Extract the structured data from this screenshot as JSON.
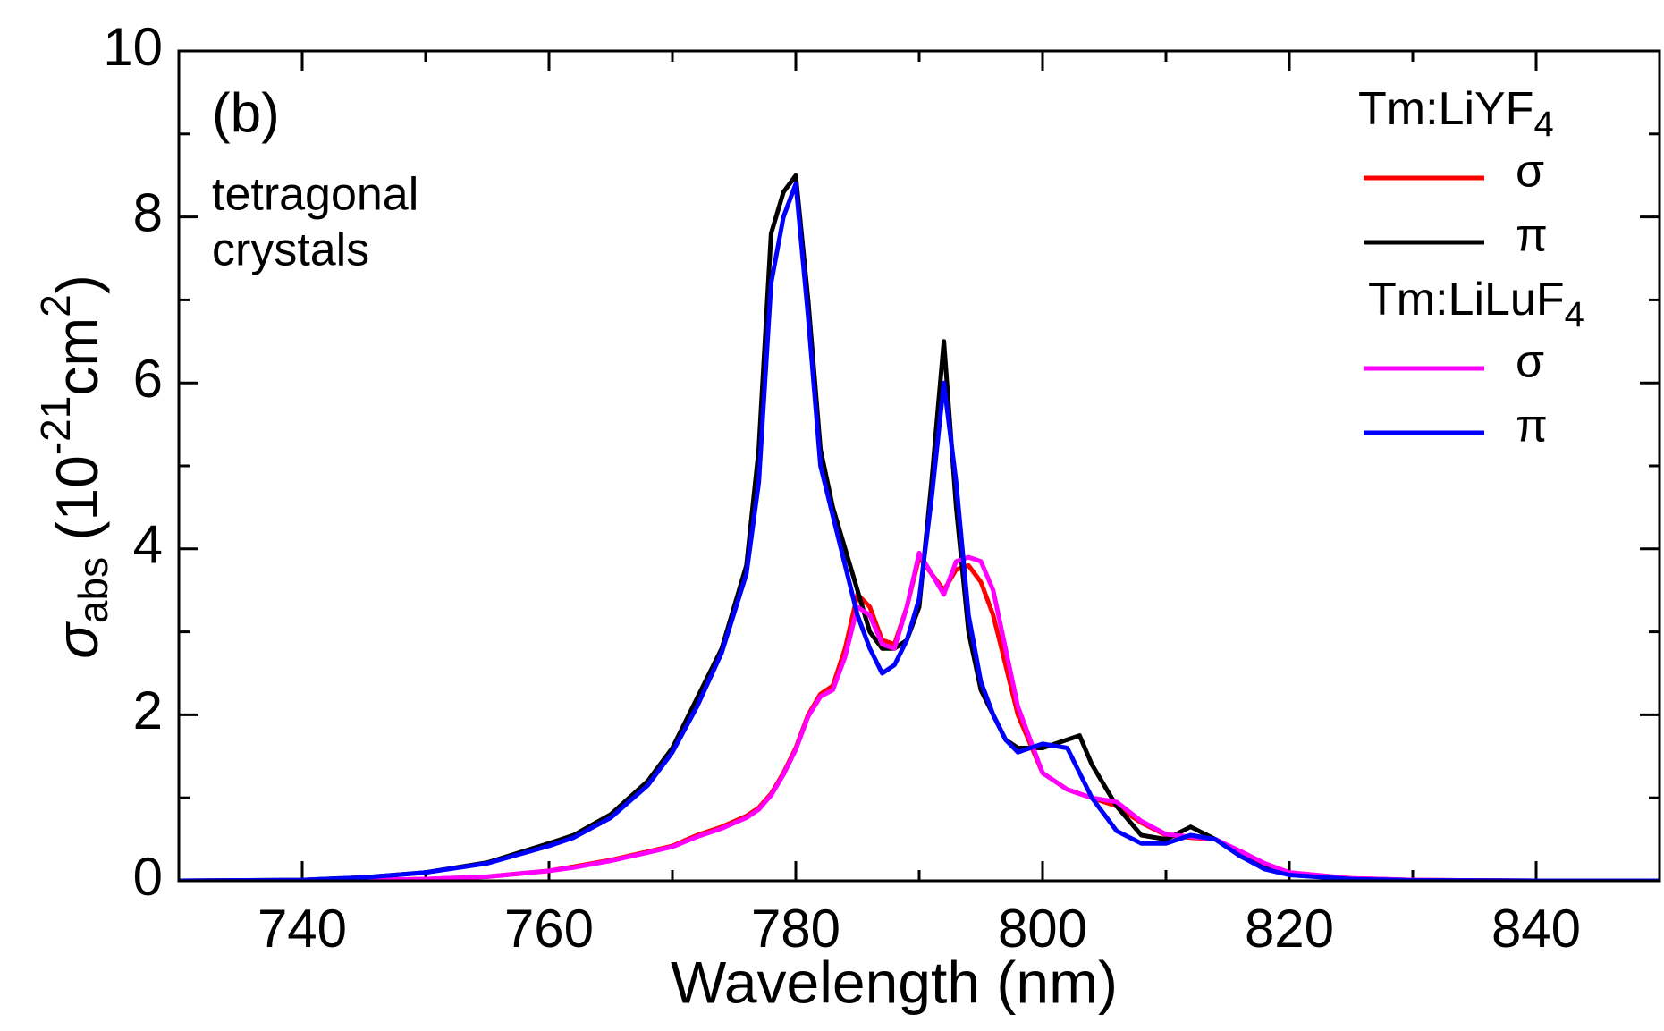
{
  "chart_data": {
    "type": "line",
    "xlabel": "Wavelength (nm)",
    "ylabel_parts": [
      {
        "text": "σ",
        "style": "italic"
      },
      {
        "text": "abs",
        "style": "sub"
      },
      {
        "text": " (10",
        "style": "normal"
      },
      {
        "text": "-21",
        "style": "sup"
      },
      {
        "text": "cm",
        "style": "normal"
      },
      {
        "text": "2",
        "style": "sup"
      },
      {
        "text": ")",
        "style": "normal"
      }
    ],
    "annotations": [
      "(b)",
      "tetragonal",
      "crystals"
    ],
    "xlim": [
      730,
      850
    ],
    "ylim": [
      0,
      10
    ],
    "xticks": [
      740,
      760,
      780,
      800,
      820,
      840
    ],
    "yticks": [
      0,
      2,
      4,
      6,
      8,
      10
    ],
    "xminor": [
      750,
      770,
      790,
      810,
      830
    ],
    "yminor": [
      1,
      3,
      5,
      7,
      9
    ],
    "legend_groups": [
      {
        "text": "Tm:LiYF",
        "sub": "4"
      },
      {
        "text": "Tm:LiLuF",
        "sub": "4"
      }
    ],
    "x": [
      730,
      740,
      745,
      750,
      755,
      760,
      762,
      765,
      768,
      770,
      772,
      774,
      776,
      777,
      778,
      779,
      780,
      781,
      782,
      783,
      784,
      785,
      786,
      787,
      788,
      789,
      790,
      791,
      792,
      793,
      794,
      795,
      796,
      797,
      798,
      800,
      802,
      803,
      804,
      806,
      808,
      810,
      812,
      814,
      816,
      818,
      820,
      825,
      830,
      840,
      850
    ],
    "series": [
      {
        "name": "σ",
        "group": 0,
        "color": "#ff0000",
        "values": [
          0,
          0,
          0.01,
          0.02,
          0.05,
          0.12,
          0.17,
          0.25,
          0.35,
          0.42,
          0.55,
          0.65,
          0.78,
          0.88,
          1.05,
          1.3,
          1.6,
          2.0,
          2.25,
          2.35,
          2.8,
          3.45,
          3.3,
          2.9,
          2.85,
          3.3,
          3.9,
          3.7,
          3.5,
          3.75,
          3.8,
          3.6,
          3.2,
          2.6,
          2.0,
          1.3,
          1.1,
          1.05,
          1.0,
          0.9,
          0.7,
          0.55,
          0.52,
          0.5,
          0.35,
          0.2,
          0.1,
          0.03,
          0.01,
          0,
          0
        ]
      },
      {
        "name": "π",
        "group": 0,
        "color": "#000000",
        "values": [
          0,
          0.01,
          0.04,
          0.1,
          0.22,
          0.45,
          0.55,
          0.8,
          1.2,
          1.6,
          2.2,
          2.8,
          3.8,
          5.2,
          7.8,
          8.3,
          8.5,
          7.0,
          5.2,
          4.5,
          4.0,
          3.5,
          3.0,
          2.8,
          2.8,
          2.9,
          3.3,
          4.8,
          6.5,
          4.5,
          3.0,
          2.3,
          2.0,
          1.7,
          1.6,
          1.6,
          1.7,
          1.75,
          1.4,
          0.9,
          0.55,
          0.5,
          0.65,
          0.5,
          0.3,
          0.15,
          0.08,
          0.02,
          0.005,
          0,
          0
        ]
      },
      {
        "name": "σ",
        "group": 1,
        "color": "#ff00ff",
        "values": [
          0,
          0,
          0.01,
          0.02,
          0.05,
          0.12,
          0.16,
          0.24,
          0.34,
          0.41,
          0.53,
          0.63,
          0.76,
          0.86,
          1.03,
          1.28,
          1.58,
          1.98,
          2.22,
          2.3,
          2.7,
          3.3,
          3.2,
          2.85,
          2.8,
          3.3,
          3.95,
          3.7,
          3.45,
          3.85,
          3.9,
          3.85,
          3.5,
          2.8,
          2.1,
          1.3,
          1.1,
          1.05,
          1.0,
          0.95,
          0.72,
          0.56,
          0.53,
          0.5,
          0.36,
          0.21,
          0.1,
          0.03,
          0.01,
          0,
          0
        ]
      },
      {
        "name": "π",
        "group": 1,
        "color": "#0000ff",
        "values": [
          0,
          0.01,
          0.04,
          0.1,
          0.21,
          0.42,
          0.52,
          0.76,
          1.15,
          1.55,
          2.1,
          2.75,
          3.7,
          4.8,
          7.2,
          8.0,
          8.4,
          6.8,
          5.0,
          4.4,
          3.8,
          3.2,
          2.8,
          2.5,
          2.6,
          2.9,
          3.4,
          4.6,
          6.0,
          4.8,
          3.2,
          2.4,
          2.0,
          1.7,
          1.55,
          1.65,
          1.6,
          1.3,
          1.0,
          0.6,
          0.45,
          0.45,
          0.55,
          0.5,
          0.3,
          0.14,
          0.07,
          0.02,
          0.005,
          0,
          0
        ]
      }
    ]
  }
}
